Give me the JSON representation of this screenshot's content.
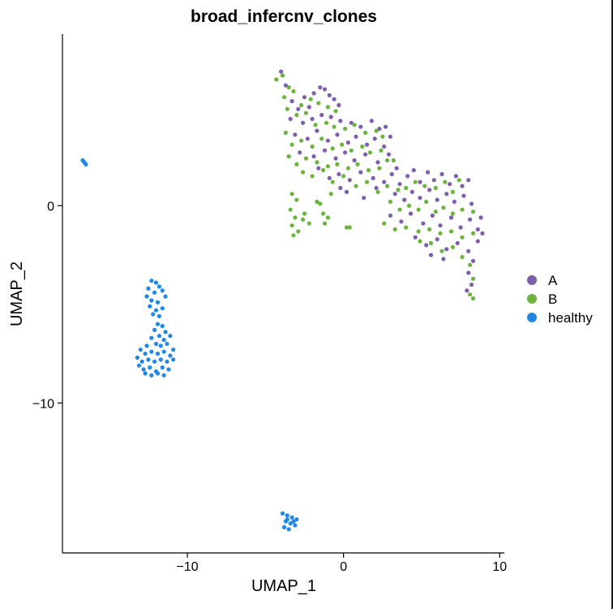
{
  "chart_data": {
    "type": "scatter",
    "title": "broad_infercnv_clones",
    "xlabel": "UMAP_1",
    "ylabel": "UMAP_2",
    "xlim": [
      -18.0,
      10.3
    ],
    "ylim": [
      -17.6,
      8.7
    ],
    "xticks": [
      -10,
      0,
      10
    ],
    "xtick_labels": [
      "−10",
      "0",
      "10"
    ],
    "yticks": [
      -10,
      0
    ],
    "ytick_labels": [
      "−10",
      "0"
    ],
    "grid": false,
    "legend": "right",
    "series": [
      {
        "name": "A",
        "color": "#7E5FAC",
        "points": [
          [
            -4.0,
            6.8
          ],
          [
            -3.7,
            6.1
          ],
          [
            -3.3,
            5.3
          ],
          [
            -2.9,
            4.9
          ],
          [
            -2.5,
            5.5
          ],
          [
            -2.2,
            5.0
          ],
          [
            -1.9,
            5.7
          ],
          [
            -1.5,
            6.0
          ],
          [
            -1.2,
            5.9
          ],
          [
            -0.9,
            5.6
          ],
          [
            -0.6,
            5.4
          ],
          [
            -0.3,
            5.1
          ],
          [
            -3.4,
            4.4
          ],
          [
            -2.6,
            4.2
          ],
          [
            -2.0,
            4.4
          ],
          [
            -1.4,
            4.6
          ],
          [
            -0.8,
            4.5
          ],
          [
            -0.2,
            4.3
          ],
          [
            0.5,
            4.2
          ],
          [
            1.1,
            4.0
          ],
          [
            1.8,
            4.3
          ],
          [
            2.3,
            3.9
          ],
          [
            2.7,
            4.0
          ],
          [
            -3.1,
            3.6
          ],
          [
            -2.3,
            3.4
          ],
          [
            -1.7,
            3.8
          ],
          [
            -1.0,
            3.3
          ],
          [
            -0.4,
            3.6
          ],
          [
            0.3,
            3.2
          ],
          [
            0.8,
            3.5
          ],
          [
            1.5,
            3.1
          ],
          [
            2.0,
            3.4
          ],
          [
            2.6,
            3.0
          ],
          [
            3.0,
            3.5
          ],
          [
            -2.8,
            2.7
          ],
          [
            -1.9,
            2.5
          ],
          [
            -1.2,
            2.8
          ],
          [
            -0.5,
            2.4
          ],
          [
            0.1,
            2.7
          ],
          [
            0.7,
            2.3
          ],
          [
            1.4,
            2.6
          ],
          [
            2.2,
            2.2
          ],
          [
            2.9,
            2.6
          ],
          [
            3.4,
            1.9
          ],
          [
            -0.3,
            1.6
          ],
          [
            0.4,
            1.3
          ],
          [
            1.1,
            1.7
          ],
          [
            1.9,
            1.4
          ],
          [
            2.6,
            1.2
          ],
          [
            3.1,
            1.6
          ],
          [
            3.6,
            1.1
          ],
          [
            4.1,
            1.5
          ],
          [
            4.5,
            1.8
          ],
          [
            4.9,
            1.2
          ],
          [
            5.4,
            1.7
          ],
          [
            5.8,
            1.3
          ],
          [
            6.3,
            1.6
          ],
          [
            6.8,
            1.1
          ],
          [
            7.2,
            1.5
          ],
          [
            7.6,
            1.0
          ],
          [
            8.0,
            1.3
          ],
          [
            3.3,
            0.6
          ],
          [
            3.9,
            0.3
          ],
          [
            4.4,
            0.7
          ],
          [
            4.9,
            0.4
          ],
          [
            5.5,
            0.8
          ],
          [
            6.0,
            0.3
          ],
          [
            6.6,
            0.6
          ],
          [
            7.1,
            0.2
          ],
          [
            7.7,
            0.5
          ],
          [
            8.2,
            0.1
          ],
          [
            0.2,
            0.7
          ],
          [
            1.3,
            0.4
          ],
          [
            2.1,
            0.9
          ],
          [
            -0.2,
            0.9
          ],
          [
            3.0,
            -0.5
          ],
          [
            3.7,
            -0.8
          ],
          [
            4.3,
            -0.4
          ],
          [
            5.1,
            -0.9
          ],
          [
            5.7,
            -0.5
          ],
          [
            6.2,
            -1.0
          ],
          [
            6.9,
            -0.6
          ],
          [
            7.5,
            -1.1
          ],
          [
            8.1,
            -0.7
          ],
          [
            8.6,
            -1.2
          ],
          [
            4.6,
            -1.6
          ],
          [
            5.3,
            -2.0
          ],
          [
            6.0,
            -1.7
          ],
          [
            6.6,
            -2.2
          ],
          [
            7.3,
            -1.9
          ],
          [
            8.0,
            -2.3
          ],
          [
            8.6,
            -1.8
          ],
          [
            8.9,
            -1.4
          ],
          [
            8.3,
            -2.8
          ],
          [
            8.0,
            -3.4
          ],
          [
            8.2,
            -4.0
          ],
          [
            7.9,
            -4.3
          ],
          [
            5.6,
            -2.5
          ],
          [
            6.4,
            -2.7
          ],
          [
            8.8,
            -0.6
          ],
          [
            -1.6,
            1.9
          ],
          [
            -0.9,
            1.4
          ]
        ]
      },
      {
        "name": "B",
        "color": "#6DB33F",
        "points": [
          [
            -4.3,
            6.4
          ],
          [
            -3.9,
            6.6
          ],
          [
            -3.5,
            6.0
          ],
          [
            -3.8,
            5.5
          ],
          [
            -3.2,
            5.8
          ],
          [
            -2.7,
            5.1
          ],
          [
            -2.1,
            5.4
          ],
          [
            -1.6,
            5.2
          ],
          [
            -1.0,
            5.0
          ],
          [
            -0.5,
            4.8
          ],
          [
            -3.6,
            4.9
          ],
          [
            -3.0,
            4.6
          ],
          [
            -2.4,
            4.7
          ],
          [
            -1.8,
            4.1
          ],
          [
            -1.1,
            4.2
          ],
          [
            -0.6,
            4.0
          ],
          [
            0.1,
            3.9
          ],
          [
            0.7,
            4.1
          ],
          [
            1.4,
            3.7
          ],
          [
            2.1,
            3.8
          ],
          [
            2.5,
            3.5
          ],
          [
            -3.7,
            3.7
          ],
          [
            -3.3,
            3.1
          ],
          [
            -2.7,
            3.3
          ],
          [
            -2.0,
            3.0
          ],
          [
            -1.4,
            3.4
          ],
          [
            -0.7,
            2.9
          ],
          [
            -0.1,
            3.1
          ],
          [
            0.5,
            2.8
          ],
          [
            1.2,
            3.0
          ],
          [
            1.7,
            2.7
          ],
          [
            2.4,
            2.8
          ],
          [
            2.8,
            2.3
          ],
          [
            -3.5,
            2.5
          ],
          [
            -3.0,
            2.1
          ],
          [
            -2.4,
            2.4
          ],
          [
            -1.7,
            2.2
          ],
          [
            -1.0,
            2.0
          ],
          [
            -0.4,
            2.1
          ],
          [
            0.3,
            1.9
          ],
          [
            0.9,
            2.1
          ],
          [
            1.6,
            1.8
          ],
          [
            2.3,
            1.9
          ],
          [
            3.2,
            2.3
          ],
          [
            -2.6,
            1.7
          ],
          [
            -2.0,
            1.5
          ],
          [
            -1.3,
            1.8
          ],
          [
            -0.7,
            1.2
          ],
          [
            0.0,
            1.5
          ],
          [
            0.8,
            1.0
          ],
          [
            1.5,
            1.2
          ],
          [
            2.2,
            0.7
          ],
          [
            2.8,
            1.0
          ],
          [
            3.5,
            0.8
          ],
          [
            4.0,
            0.9
          ],
          [
            4.6,
            1.2
          ],
          [
            5.2,
            1.0
          ],
          [
            5.9,
            0.9
          ],
          [
            6.5,
            1.2
          ],
          [
            7.0,
            0.7
          ],
          [
            7.4,
            1.3
          ],
          [
            3.0,
            0.2
          ],
          [
            3.6,
            -0.2
          ],
          [
            4.2,
            0.0
          ],
          [
            4.8,
            -0.2
          ],
          [
            5.3,
            0.2
          ],
          [
            5.9,
            -0.3
          ],
          [
            6.4,
            -0.1
          ],
          [
            7.0,
            -0.4
          ],
          [
            7.6,
            -0.2
          ],
          [
            8.3,
            -0.3
          ],
          [
            2.6,
            -0.9
          ],
          [
            3.3,
            -1.2
          ],
          [
            4.0,
            -1.1
          ],
          [
            4.8,
            -1.3
          ],
          [
            5.5,
            -1.2
          ],
          [
            6.2,
            -1.4
          ],
          [
            6.9,
            -1.3
          ],
          [
            7.6,
            -1.6
          ],
          [
            8.3,
            -1.4
          ],
          [
            4.9,
            -1.8
          ],
          [
            5.6,
            -1.9
          ],
          [
            6.3,
            -2.3
          ],
          [
            7.0,
            -2.1
          ],
          [
            7.6,
            -2.6
          ],
          [
            8.1,
            -3.0
          ],
          [
            8.3,
            -3.7
          ],
          [
            8.1,
            -4.5
          ],
          [
            8.3,
            -4.7
          ],
          [
            -3.3,
            0.6
          ],
          [
            -3.0,
            0.3
          ],
          [
            -3.4,
            -0.2
          ],
          [
            -3.1,
            -0.6
          ],
          [
            -3.3,
            -1.0
          ],
          [
            -2.9,
            -1.3
          ],
          [
            -3.2,
            -1.5
          ],
          [
            -2.6,
            -0.7
          ],
          [
            -2.2,
            -0.9
          ],
          [
            -2.5,
            -0.4
          ],
          [
            -1.3,
            -0.4
          ],
          [
            -1.0,
            -0.6
          ],
          [
            -1.2,
            -0.9
          ],
          [
            0.2,
            -1.1
          ],
          [
            0.4,
            -1.1
          ],
          [
            -1.7,
            0.2
          ],
          [
            -1.5,
            0.1
          ],
          [
            -0.8,
            0.6
          ]
        ]
      },
      {
        "name": "healthy",
        "color": "#2187E0",
        "points": [
          [
            -16.7,
            2.3
          ],
          [
            -16.6,
            2.2
          ],
          [
            -16.5,
            2.1
          ],
          [
            -12.3,
            -3.8
          ],
          [
            -12.0,
            -3.9
          ],
          [
            -11.8,
            -4.1
          ],
          [
            -12.5,
            -4.2
          ],
          [
            -12.1,
            -4.4
          ],
          [
            -11.6,
            -4.3
          ],
          [
            -12.6,
            -4.6
          ],
          [
            -12.3,
            -4.8
          ],
          [
            -11.9,
            -4.9
          ],
          [
            -11.4,
            -4.6
          ],
          [
            -12.4,
            -5.1
          ],
          [
            -12.0,
            -5.3
          ],
          [
            -11.6,
            -5.2
          ],
          [
            -12.2,
            -5.5
          ],
          [
            -11.8,
            -5.6
          ],
          [
            -11.9,
            -6.0
          ],
          [
            -11.6,
            -6.1
          ],
          [
            -12.1,
            -6.3
          ],
          [
            -11.4,
            -6.4
          ],
          [
            -11.8,
            -6.6
          ],
          [
            -12.3,
            -6.7
          ],
          [
            -11.5,
            -6.8
          ],
          [
            -11.1,
            -6.6
          ],
          [
            -12.0,
            -7.0
          ],
          [
            -11.7,
            -7.1
          ],
          [
            -11.3,
            -7.0
          ],
          [
            -12.6,
            -7.1
          ],
          [
            -13.0,
            -7.3
          ],
          [
            -12.7,
            -7.5
          ],
          [
            -12.3,
            -7.4
          ],
          [
            -11.9,
            -7.5
          ],
          [
            -11.5,
            -7.4
          ],
          [
            -11.1,
            -7.6
          ],
          [
            -10.9,
            -7.3
          ],
          [
            -13.2,
            -7.7
          ],
          [
            -12.9,
            -7.9
          ],
          [
            -12.5,
            -7.8
          ],
          [
            -12.1,
            -7.9
          ],
          [
            -11.7,
            -7.8
          ],
          [
            -11.3,
            -7.9
          ],
          [
            -10.9,
            -7.8
          ],
          [
            -13.1,
            -8.1
          ],
          [
            -12.8,
            -8.3
          ],
          [
            -12.4,
            -8.2
          ],
          [
            -12.0,
            -8.4
          ],
          [
            -11.6,
            -8.2
          ],
          [
            -11.2,
            -8.3
          ],
          [
            -12.7,
            -8.5
          ],
          [
            -12.3,
            -8.6
          ],
          [
            -11.9,
            -8.5
          ],
          [
            -11.5,
            -8.6
          ],
          [
            -3.9,
            -15.6
          ],
          [
            -3.6,
            -15.7
          ],
          [
            -3.3,
            -15.8
          ],
          [
            -3.0,
            -15.9
          ],
          [
            -3.7,
            -16.0
          ],
          [
            -3.4,
            -16.1
          ],
          [
            -3.8,
            -16.3
          ],
          [
            -3.5,
            -16.4
          ],
          [
            -3.1,
            -16.2
          ],
          [
            -3.6,
            -15.9
          ],
          [
            -3.2,
            -16.0
          ]
        ]
      }
    ]
  }
}
